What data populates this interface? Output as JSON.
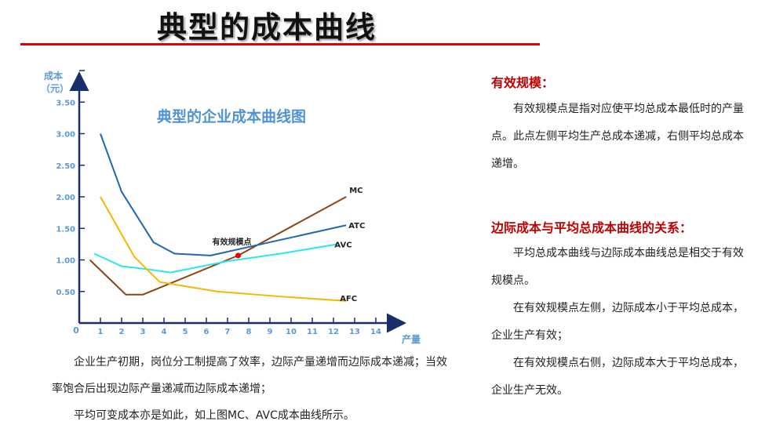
{
  "header": {
    "title": "典型的成本曲线"
  },
  "chart_data": {
    "type": "line",
    "title": "典型的企业成本曲线图",
    "ylabel_line1": "成本",
    "ylabel_line2": "（元）",
    "xlabel": "产量",
    "origin_label": "0",
    "xlim": [
      0,
      14.3
    ],
    "ylim": [
      0,
      3.65
    ],
    "x_ticks": [
      "1",
      "2",
      "3",
      "4",
      "5",
      "6",
      "7",
      "8",
      "9",
      "10",
      "11",
      "12",
      "13",
      "14"
    ],
    "y_ticks": [
      "0.50",
      "1.00",
      "1.50",
      "2.00",
      "2.50",
      "3.00",
      "3.50"
    ],
    "series": [
      {
        "name": "MC",
        "color": "#8b4513",
        "points": [
          [
            0.5,
            1.0
          ],
          [
            2.2,
            0.45
          ],
          [
            3.0,
            0.45
          ],
          [
            7.5,
            1.07
          ],
          [
            12.6,
            2.0
          ]
        ]
      },
      {
        "name": "ATC",
        "color": "#1f66b5",
        "points": [
          [
            1.0,
            3.0
          ],
          [
            2.0,
            2.08
          ],
          [
            3.5,
            1.28
          ],
          [
            4.5,
            1.1
          ],
          [
            6.2,
            1.07
          ],
          [
            9.0,
            1.28
          ],
          [
            12.6,
            1.55
          ]
        ]
      },
      {
        "name": "AVC",
        "color": "#2ee6f0",
        "points": [
          [
            0.7,
            1.1
          ],
          [
            2.0,
            0.9
          ],
          [
            3.3,
            0.85
          ],
          [
            4.3,
            0.8
          ],
          [
            7.0,
            0.98
          ],
          [
            9.5,
            1.1
          ],
          [
            12.2,
            1.25
          ]
        ]
      },
      {
        "name": "AFC",
        "color": "#f5b800",
        "points": [
          [
            1.0,
            2.0
          ],
          [
            2.6,
            1.05
          ],
          [
            3.8,
            0.65
          ],
          [
            6.5,
            0.5
          ],
          [
            9.5,
            0.42
          ],
          [
            12.6,
            0.35
          ]
        ]
      }
    ],
    "annotation": {
      "text": "有效规模点",
      "x": 7.5,
      "y": 1.07
    }
  },
  "left_text": {
    "p1": "企业生产初期，岗位分工制提高了效率，边际产量递增而边际成本递减；当效率饱合后出现边际产量递减而边际成本递增；",
    "p2": "平均可变成本亦是如此，如上图MC、AVC成本曲线所示。"
  },
  "right": {
    "section1": {
      "heading": "有效规模：",
      "body": "有效规模点是指对应使平均总成本最低时的产量点。此点左侧平均生产总成本递减，右侧平均总成本递增。"
    },
    "section2": {
      "heading": "边际成本与平均总成本曲线的关系：",
      "p1": "平均总成本曲线与边际成本曲线总是相交于有效规模点。",
      "p2": "在有效规模点左侧，边际成本小于平均总成本，企业生产有效；",
      "p3": "在有效规模点右侧，边际成本大于平均总成本，企业生产无效。"
    }
  }
}
